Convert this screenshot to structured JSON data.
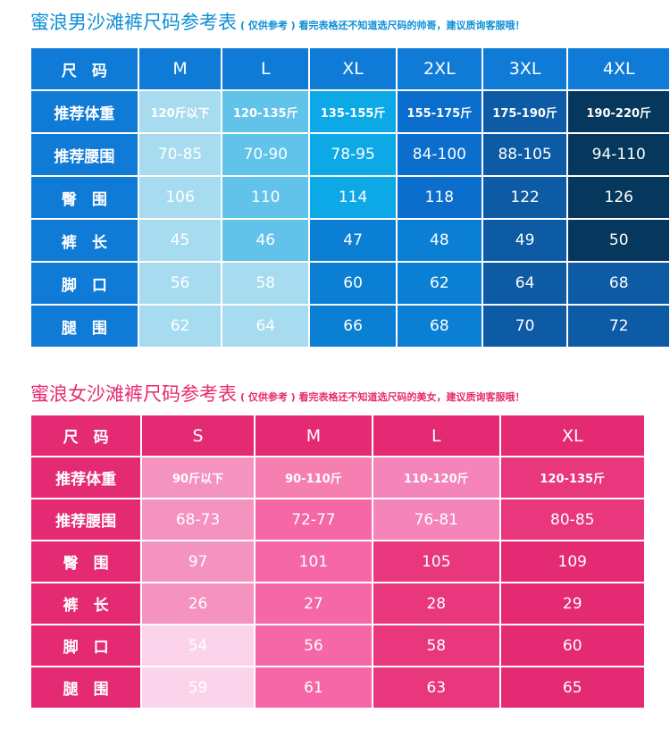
{
  "men": {
    "title": "蜜浪男沙滩裤尺码参考表",
    "note": "( 仅供参考 ) 看完表格还不知道选尺码的帅哥，建议质询客服哦！",
    "headers": [
      "尺　码",
      "M",
      "L",
      "XL",
      "2XL",
      "3XL",
      "4XL"
    ],
    "rows": [
      {
        "label": "推荐体重",
        "values": [
          "120斤以下",
          "120-135斤",
          "135-155斤",
          "155-175斤",
          "175-190斤",
          "190-220斤"
        ]
      },
      {
        "label": "推荐腰围",
        "values": [
          "70-85",
          "70-90",
          "78-95",
          "84-100",
          "88-105",
          "94-110"
        ]
      },
      {
        "label": "臀　围",
        "values": [
          "106",
          "110",
          "114",
          "118",
          "122",
          "126"
        ]
      },
      {
        "label": "裤　长",
        "values": [
          "45",
          "46",
          "47",
          "48",
          "49",
          "50"
        ]
      },
      {
        "label": "脚　口",
        "values": [
          "56",
          "58",
          "60",
          "62",
          "64",
          "68"
        ]
      },
      {
        "label": "腿　围",
        "values": [
          "62",
          "64",
          "66",
          "68",
          "70",
          "72"
        ]
      }
    ],
    "colors": {
      "header_bg": "#0f7bd6",
      "row_label_bg": "#0f7bd6"
    }
  },
  "women": {
    "title": "蜜浪女沙滩裤尺码参考表",
    "note": "( 仅供参考 ) 看完表格还不知道选尺码的美女，建议质询客服哦！",
    "headers": [
      "尺　码",
      "S",
      "M",
      "L",
      "XL"
    ],
    "rows": [
      {
        "label": "推荐体重",
        "values": [
          "90斤以下",
          "90-110斤",
          "110-120斤",
          "120-135斤"
        ]
      },
      {
        "label": "推荐腰围",
        "values": [
          "68-73",
          "72-77",
          "76-81",
          "80-85"
        ]
      },
      {
        "label": "臀　围",
        "values": [
          "97",
          "101",
          "105",
          "109"
        ]
      },
      {
        "label": "裤　长",
        "values": [
          "26",
          "27",
          "28",
          "29"
        ]
      },
      {
        "label": "脚　口",
        "values": [
          "54",
          "56",
          "58",
          "60"
        ]
      },
      {
        "label": "腿　围",
        "values": [
          "59",
          "61",
          "63",
          "65"
        ]
      }
    ],
    "colors": {
      "header_bg": "#e42a72",
      "row_label_bg": "#e42a72"
    }
  }
}
